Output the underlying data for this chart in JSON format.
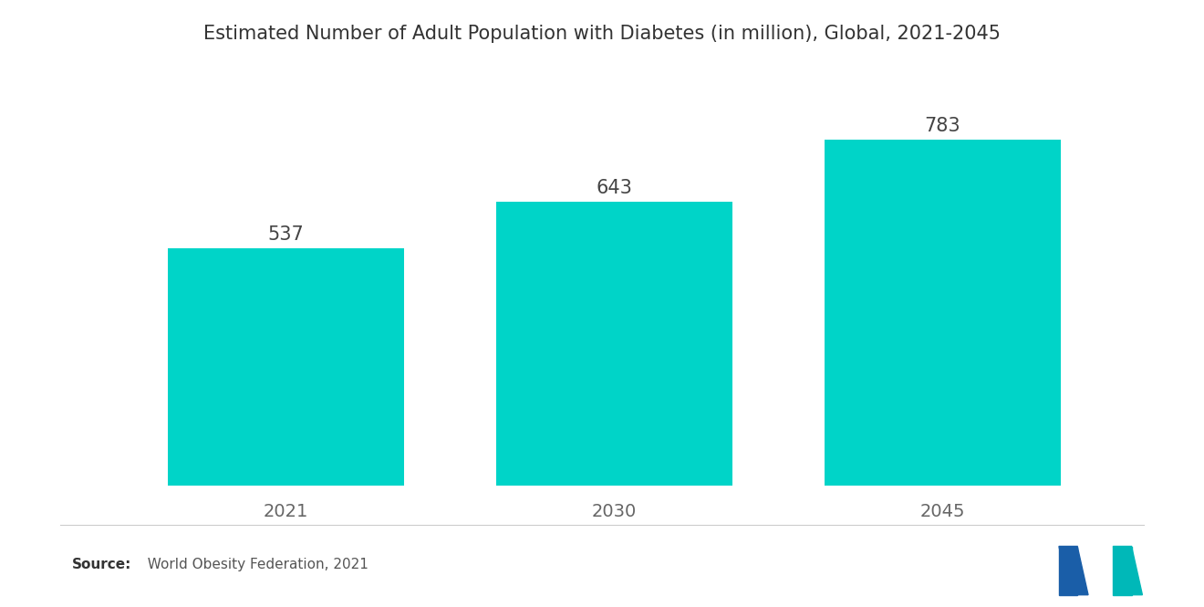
{
  "title": "Estimated Number of Adult Population with Diabetes (in million), Global, 2021-2045",
  "categories": [
    "2021",
    "2030",
    "2045"
  ],
  "values": [
    537,
    643,
    783
  ],
  "bar_color": "#00D4C8",
  "background_color": "#ffffff",
  "value_fontsize": 15,
  "label_fontsize": 14,
  "title_fontsize": 15,
  "bar_width": 0.72,
  "ylim": [
    0,
    880
  ],
  "source_bold": "Source:",
  "source_normal": "  World Obesity Federation, 2021",
  "source_fontsize": 11,
  "label_color": "#666666",
  "value_color": "#444444",
  "title_color": "#333333",
  "logo_left_color": "#1a5ea8",
  "logo_right_color": "#00b8b8",
  "divider_color": "#cccccc"
}
